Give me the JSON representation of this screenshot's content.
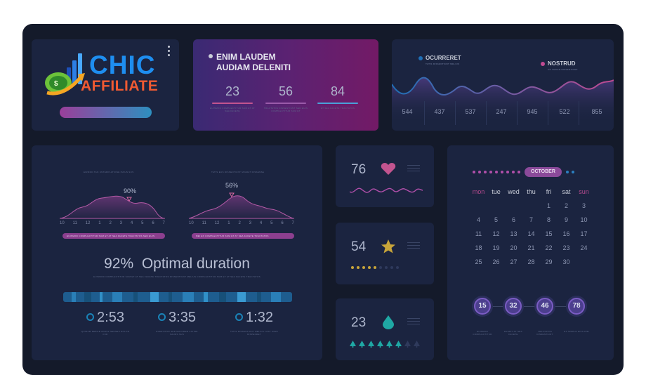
{
  "brand": {
    "line1": "CHIC",
    "line2": "AFFILIATE"
  },
  "stats_card": {
    "title_line1": "ENIM LAUDEM",
    "title_line2": "AUDIAM DELENITI",
    "items": [
      {
        "value": "23",
        "caption": "EUISMOD COMPLECTITUR SUM ET AT SEA FACETE",
        "color": "#c2548f"
      },
      {
        "value": "56",
        "caption": "TRACTATOS DISSENTIUNT SED EUIS COMPLECTITUR SUM ET",
        "color": "#9a5aa9"
      },
      {
        "value": "84",
        "caption": "ET SEA FACETE TRACTATOS",
        "color": "#4aa0d8"
      }
    ]
  },
  "wave_card": {
    "legend1": "OCURRERET",
    "legend1_sub": "TATIS DISSENTIUNT MELIUS",
    "legend2": "NOSTRUD",
    "legend2_sub": "AD VERAM DISSENTIUNT",
    "values": [
      "544",
      "437",
      "537",
      "247",
      "945",
      "522",
      "855"
    ],
    "colors": {
      "blue": "#1f6fb6",
      "pink": "#c04a92"
    }
  },
  "main_card": {
    "chart1_caption": "EIRMOD TAN UNTERPLATIONE ISSUS SUS",
    "chart2_caption": "TATIS EUS DISSENTIUNT MIGRAT DISSENSE",
    "chart1_peak": "90%",
    "chart2_peak": "56%",
    "axis_labels": [
      "10",
      "11",
      "12",
      "1",
      "2",
      "3",
      "4",
      "5",
      "6",
      "7"
    ],
    "pill1": "EUISMOD COMPLECTITUR SUM ET AT SEA FACETE TRACTATOS SED EUIS",
    "pill2": "MEI EX COMPLECTITUR SUM ET AT SEA FACETE TRACTATOS",
    "optimal_pct": "92%",
    "optimal_label": "Optimal duration",
    "optimal_sub": "EUISMOD COMPLECTITUR SUM ET AT SEA FACETE TRACTATOS DISSENTIUNT MELIUS COMPLECTITUR SUM ET AT SEA FACETE TRACTATOS",
    "timers": [
      {
        "time": "2:53",
        "caption": "QUIDAM DEBILE ADOLE SENSES DOLOR FUR"
      },
      {
        "time": "3:35",
        "caption": "EVERTITUR SED MAJOREM LATINE SAUDS SUS"
      },
      {
        "time": "1:32",
        "caption": "TATIS DISSENTIUNT MELIUS LAST MIGR DISPENDET"
      }
    ]
  },
  "small_cards": [
    {
      "value": "76",
      "icon": "heart-icon",
      "color": "#c2548f"
    },
    {
      "value": "54",
      "icon": "star-icon",
      "color": "#c8a53a",
      "filled": 5,
      "total": 9
    },
    {
      "value": "23",
      "icon": "drop-icon",
      "color": "#1fa8a4",
      "filled": 6,
      "total": 8
    }
  ],
  "calendar": {
    "month": "OCTOBER",
    "days_of_week": [
      "mon",
      "tue",
      "wed",
      "thu",
      "fri",
      "sat",
      "sun"
    ],
    "weeks": [
      [
        "",
        "",
        "",
        "",
        "1",
        "2",
        "3"
      ],
      [
        "4",
        "5",
        "6",
        "7",
        "8",
        "9",
        "10"
      ],
      [
        "11",
        "12",
        "13",
        "14",
        "15",
        "16",
        "17"
      ],
      [
        "18",
        "19",
        "20",
        "21",
        "22",
        "23",
        "24"
      ],
      [
        "25",
        "26",
        "27",
        "28",
        "29",
        "30",
        ""
      ]
    ],
    "badges": [
      {
        "value": "15",
        "caption": "EUISMOD COMPLECTITUR"
      },
      {
        "value": "32",
        "caption": "EVERIT AT SEA FACETE"
      },
      {
        "value": "46",
        "caption": "TRACTATOS DISSENTIUNT"
      },
      {
        "value": "78",
        "caption": "EX SIMPLE EIUS DIM"
      }
    ]
  }
}
